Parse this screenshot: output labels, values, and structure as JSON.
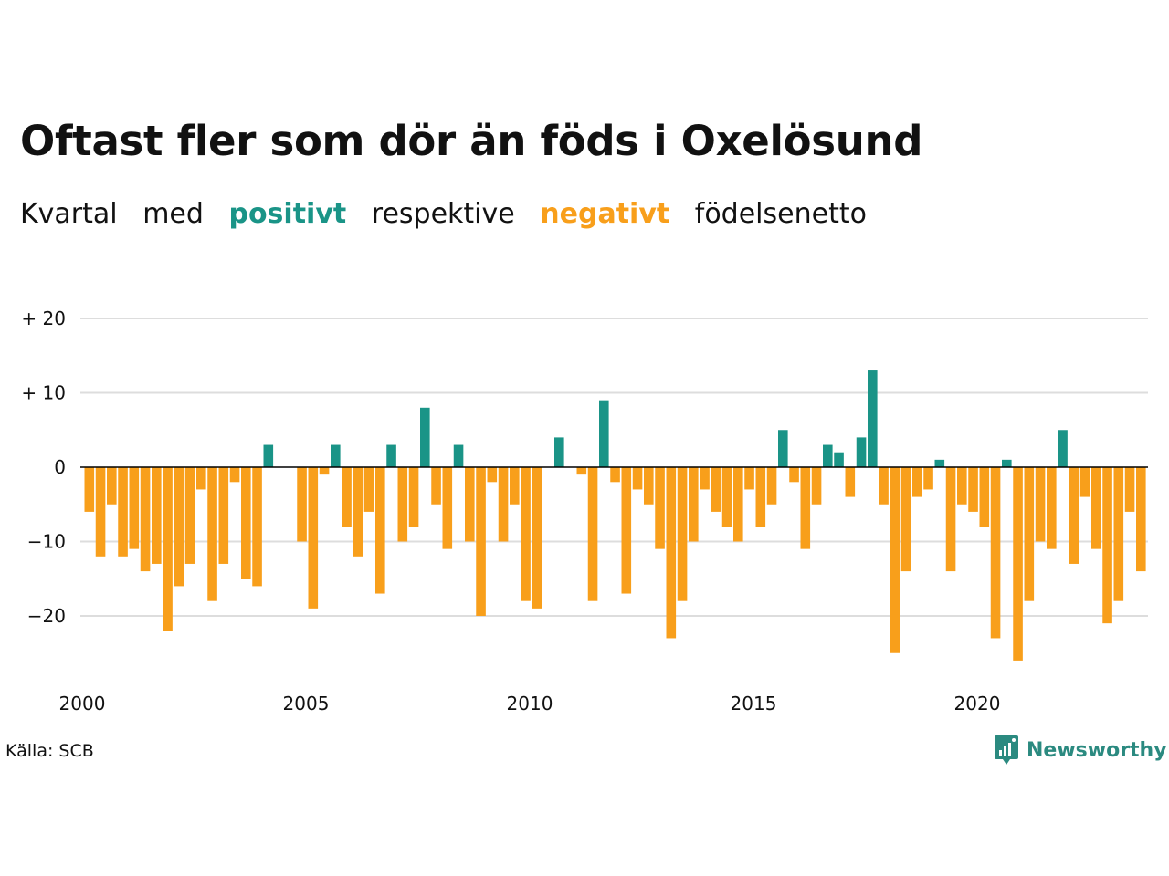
{
  "title": "Oftast fler som dör än föds i Oxelösund",
  "subtitle": {
    "part1": "Kvartal",
    "part2": "med",
    "positive": "positivt",
    "part3": "respektive",
    "negative": "negativt",
    "part4": "födelsenetto"
  },
  "source": "Källa: SCB",
  "brand": "Newsworthy",
  "colors": {
    "positive": "#1a9487",
    "negative": "#f89f1b",
    "grid": "#dddddd",
    "zero_line": "#000000"
  },
  "chart_data": {
    "type": "bar",
    "x_ticks": [
      "2000",
      "2005",
      "2010",
      "2015",
      "2020"
    ],
    "y_ticks": [
      "+ 20",
      "+ 10",
      "0",
      "−10",
      "−20"
    ],
    "y_tick_values": [
      20,
      10,
      0,
      -10,
      -20
    ],
    "ylim": [
      -28,
      20
    ],
    "start_year": 2000,
    "periods_per_year": 4,
    "values": [
      -6,
      -12,
      -5,
      -12,
      -11,
      -14,
      -13,
      -22,
      -16,
      -13,
      -3,
      -18,
      -13,
      -2,
      -15,
      -16,
      3,
      0,
      0,
      -10,
      -19,
      -1,
      3,
      -8,
      -12,
      -6,
      -17,
      3,
      -10,
      -8,
      8,
      -5,
      -11,
      3,
      -10,
      -20,
      -2,
      -10,
      -5,
      -18,
      -19,
      0,
      4,
      0,
      -1,
      -18,
      9,
      -2,
      -17,
      -3,
      -5,
      -11,
      -23,
      -18,
      -10,
      -3,
      -6,
      -8,
      -10,
      -3,
      -8,
      -5,
      5,
      -2,
      -11,
      -5,
      3,
      2,
      -4,
      4,
      13,
      -5,
      -25,
      -14,
      -4,
      -3,
      1,
      -14,
      -5,
      -6,
      -8,
      -23,
      1,
      -26,
      -18,
      -10,
      -11,
      5,
      -13,
      -4,
      -11,
      -21,
      -18,
      -6,
      -14
    ]
  }
}
